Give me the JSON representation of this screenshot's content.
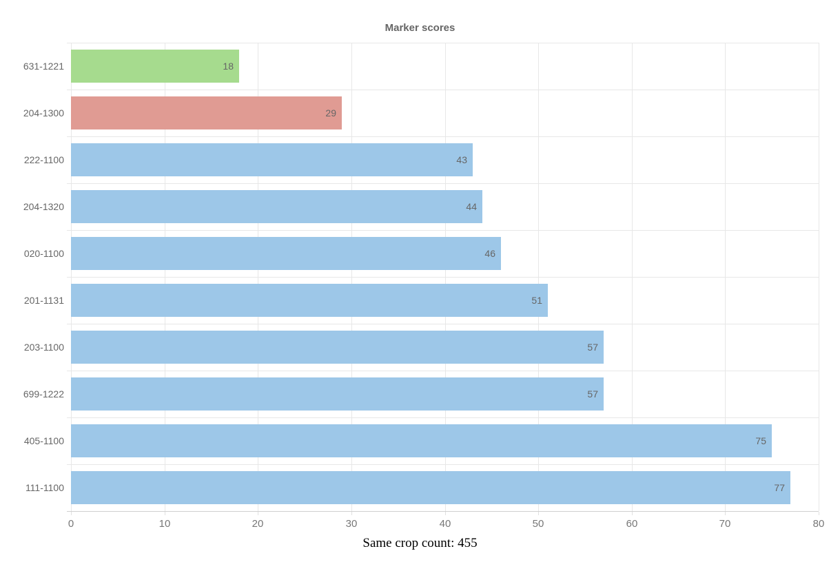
{
  "chart_data": {
    "type": "bar",
    "orientation": "horizontal",
    "title": "Marker scores",
    "categories": [
      "631-1221",
      "204-1300",
      "222-1100",
      "204-1320",
      "020-1100",
      "201-1131",
      "203-1100",
      "699-1222",
      "405-1100",
      "111-1100"
    ],
    "values": [
      18,
      29,
      43,
      44,
      46,
      51,
      57,
      57,
      75,
      77
    ],
    "bar_colors": [
      "#a6db8e",
      "#e09b93",
      "#9dc7e8",
      "#9dc7e8",
      "#9dc7e8",
      "#9dc7e8",
      "#9dc7e8",
      "#9dc7e8",
      "#9dc7e8",
      "#9dc7e8"
    ],
    "value_label_position": "inside-end",
    "x_ticks": [
      0,
      10,
      20,
      30,
      40,
      50,
      60,
      70,
      80
    ],
    "xlim": [
      0,
      80
    ],
    "xlabel": "",
    "ylabel": "",
    "grid": true,
    "legend": "none"
  },
  "caption": "Same crop count: 455",
  "colors": {
    "title_text": "#666666",
    "axis_label_text": "#666666",
    "tick_label_text": "#777777",
    "value_label_text": "#666666",
    "gridline": "#e7e7e7",
    "axis_line": "#cfcfcf",
    "background": "#ffffff",
    "bar_green": "#a6db8e",
    "bar_salmon": "#e09b93",
    "bar_blue": "#9dc7e8"
  }
}
